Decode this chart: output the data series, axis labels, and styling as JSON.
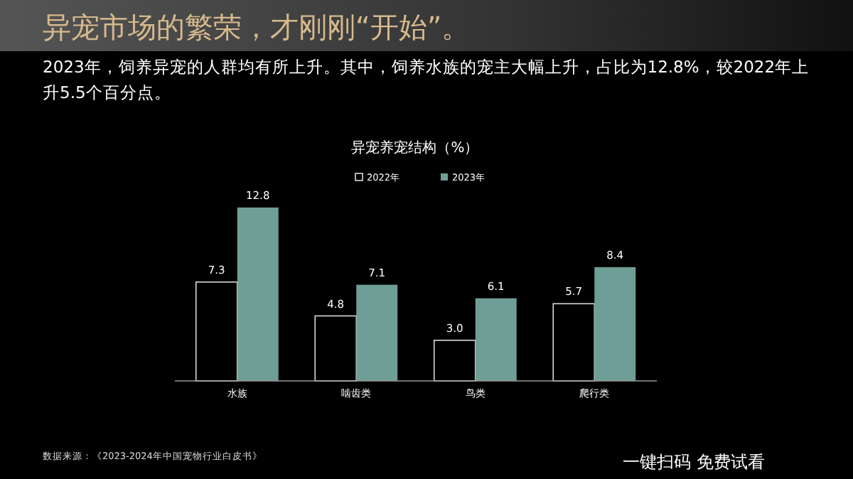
{
  "chart_data": {
    "type": "bar",
    "title": "异宠市场的繁荣，才刚刚“开始”。",
    "subtitle": "2023年，饲养异宠的人群均有所上升。其中，饲养水族的宠主大幅上升，占比为12.8%，较2022年上升5.5个百分点。",
    "xlabel": "异宠养宠结构（%）",
    "categories": [
      "水族",
      "啮齿类",
      "鸟类",
      "爬行类"
    ],
    "series": [
      {
        "name": "2022年",
        "color": "#000000",
        "values": [
          7.3,
          4.8,
          3.0,
          5.7
        ],
        "value_labels": [
          "7.3",
          "4.8",
          "3.0",
          "5.7"
        ]
      },
      {
        "name": "2023年",
        "color": "#6e9e96",
        "values": [
          12.8,
          7.1,
          6.1,
          8.4
        ],
        "value_labels": [
          "12.8",
          "7.1",
          "6.1",
          "8.4"
        ]
      }
    ],
    "legend": "top",
    "annotations": [
      "数据来源：《2023-2024年中国宠物行业白皮书》",
      "一键扫码 免费试看"
    ]
  }
}
